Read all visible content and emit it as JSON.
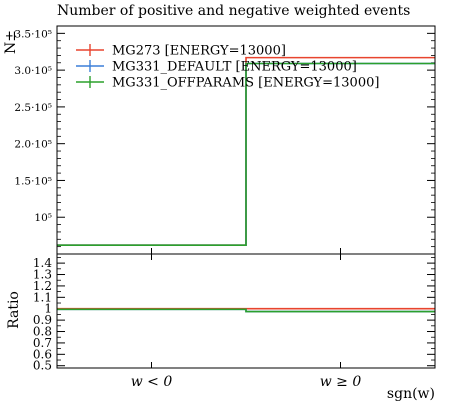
{
  "chart_data": {
    "type": "step-histogram",
    "title": "Number of positive and negative weighted events",
    "ylabel_main": "N±",
    "ylabel_ratio": "Ratio",
    "xlabel": "sgn(w)",
    "categories": [
      "w < 0",
      "w ≥ 0"
    ],
    "main": {
      "ylim": [
        50000,
        360000
      ],
      "yticks": [
        {
          "value": 100000,
          "label": "10⁵"
        },
        {
          "value": 150000,
          "label": "1.5·10⁵"
        },
        {
          "value": 200000,
          "label": "2.0·10⁵"
        },
        {
          "value": 250000,
          "label": "2.5·10⁵"
        },
        {
          "value": 300000,
          "label": "3.0·10⁵"
        },
        {
          "value": 350000,
          "label": "3.5·10⁵"
        }
      ],
      "series": [
        {
          "name": "MG273 [ENERGY=13000]",
          "color": "#e8442e",
          "values": [
            62000,
            317000
          ]
        },
        {
          "name": "MG331_DEFAULT [ENERGY=13000]",
          "color": "#3b7fd9",
          "values": [
            62000,
            309000
          ]
        },
        {
          "name": "MG331_OFFPARAMS [ENERGY=13000]",
          "color": "#2ca02c",
          "values": [
            62000,
            309000
          ]
        }
      ]
    },
    "ratio": {
      "ylim": [
        0.48,
        1.48
      ],
      "yticks": [
        0.5,
        0.6,
        0.7,
        0.8,
        0.9,
        1,
        1.1,
        1.2,
        1.3,
        1.4
      ],
      "series": [
        {
          "color": "#e8442e",
          "values": [
            1.0,
            1.0
          ]
        },
        {
          "color": "#3b7fd9",
          "values": [
            0.995,
            0.975
          ]
        },
        {
          "color": "#2ca02c",
          "values": [
            0.995,
            0.975
          ]
        }
      ]
    }
  }
}
